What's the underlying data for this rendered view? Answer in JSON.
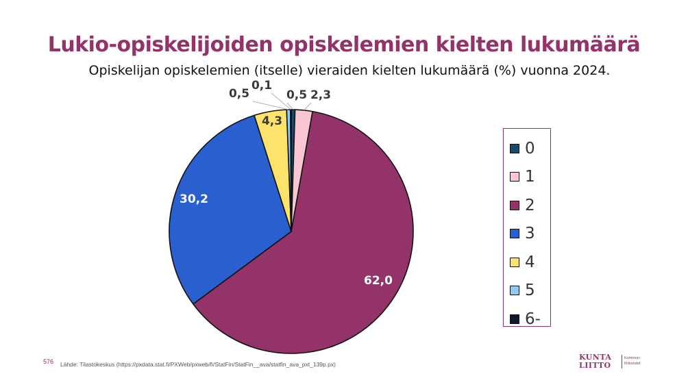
{
  "slide": {
    "title": "Lukio-opiskelijoiden opiskelemien kielten lukumäärä",
    "subtitle": "Opiskelijan opiskelemien (itselle) vieraiden kielten lukumäärä (%) vuonna  2024.",
    "page_number": "576",
    "source": "Lähde: Tilastokeskus (https://pxdata.stat.fi/PXWeb/pxweb/fi/StatFin/StatFin__ava/statfin_ava_pxt_139p.px)",
    "logo": {
      "line1": "KUNTA",
      "line2": "LIITTO",
      "sub1": "Kommun-",
      "sub2": "förbundet"
    }
  },
  "chart_data": {
    "type": "pie",
    "title": "Opiskelijan opiskelemien (itselle) vieraiden kielten lukumäärä (%) vuonna  2024.",
    "categories": [
      "0",
      "1",
      "2",
      "3",
      "4",
      "5",
      "6-"
    ],
    "values": [
      0.5,
      2.3,
      62.0,
      30.2,
      4.3,
      0.5,
      0.1
    ],
    "labels": [
      "0,5",
      "2,3",
      "62,0",
      "30,2",
      "4,3",
      "0,5",
      "0,1"
    ],
    "colors": [
      "#1a4a6b",
      "#f9c6d3",
      "#93336a",
      "#2a5fcf",
      "#fde26b",
      "#8ecdf0",
      "#0d1a2b"
    ],
    "start_angle_deg": 0,
    "direction": "clockwise",
    "legend": "right"
  }
}
